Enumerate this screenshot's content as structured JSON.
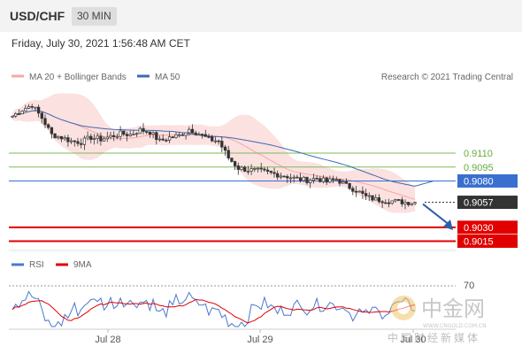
{
  "header": {
    "symbol": "USD/CHF",
    "timeframe": "30 MIN"
  },
  "datetime": "Friday, July 30, 2021 1:56:48 AM CET",
  "legend": {
    "bollinger": "MA 20 + Bollinger Bands",
    "ma50": "MA 50",
    "credit": "Research © 2021 Trading Central"
  },
  "rsi_legend": {
    "rsi": "RSI",
    "ma": "9MA"
  },
  "watermark": {
    "title": "中金网",
    "url": "WWW.CNGOLD.COM.CN",
    "subtitle": "中国财经新媒体"
  },
  "colors": {
    "bollinger": "#f4a8a5",
    "ma50": "#4169b0",
    "support": "#e00000",
    "pivot": "#3a6fd0",
    "resistance": "#7dbb58",
    "last": "#333333",
    "candle_up": "#ffffff",
    "candle_down": "#333333"
  },
  "chart_data": {
    "type": "candlestick",
    "x_labels": [
      "Jul 28",
      "Jul 29",
      "Jul 30"
    ],
    "price_range": [
      0.9005,
      0.9175
    ],
    "levels": [
      {
        "value": 0.911,
        "label": "0.9110",
        "kind": "resistance"
      },
      {
        "value": 0.9095,
        "label": "0.9095",
        "kind": "resistance"
      },
      {
        "value": 0.908,
        "label": "0.9080",
        "kind": "pivot"
      },
      {
        "value": 0.9057,
        "label": "0.9057",
        "kind": "last"
      },
      {
        "value": 0.903,
        "label": "0.9030",
        "kind": "support"
      },
      {
        "value": 0.9015,
        "label": "0.9015",
        "kind": "support"
      }
    ],
    "rsi": {
      "range": [
        20,
        80
      ],
      "level_label": "70",
      "level": 70
    },
    "close_path": [
      [
        0,
        0.915
      ],
      [
        3,
        0.9157
      ],
      [
        6,
        0.9162
      ],
      [
        9,
        0.9148
      ],
      [
        12,
        0.913
      ],
      [
        15,
        0.9127
      ],
      [
        18,
        0.9123
      ],
      [
        21,
        0.9122
      ],
      [
        24,
        0.9127
      ],
      [
        27,
        0.9125
      ],
      [
        30,
        0.9128
      ],
      [
        33,
        0.9131
      ],
      [
        36,
        0.913
      ],
      [
        39,
        0.9135
      ],
      [
        42,
        0.9133
      ],
      [
        45,
        0.9123
      ],
      [
        48,
        0.9127
      ],
      [
        51,
        0.9129
      ],
      [
        54,
        0.9136
      ],
      [
        57,
        0.9131
      ],
      [
        60,
        0.9125
      ],
      [
        63,
        0.9123
      ],
      [
        66,
        0.9105
      ],
      [
        69,
        0.9094
      ],
      [
        72,
        0.9092
      ],
      [
        75,
        0.9091
      ],
      [
        78,
        0.9089
      ],
      [
        81,
        0.9087
      ],
      [
        84,
        0.9085
      ],
      [
        87,
        0.9082
      ],
      [
        90,
        0.9081
      ],
      [
        93,
        0.9083
      ],
      [
        96,
        0.9079
      ],
      [
        99,
        0.9082
      ],
      [
        102,
        0.9075
      ],
      [
        105,
        0.907
      ],
      [
        108,
        0.9063
      ],
      [
        111,
        0.906
      ],
      [
        114,
        0.9059
      ],
      [
        117,
        0.9058
      ],
      [
        120,
        0.9057
      ],
      [
        123,
        0.9057
      ]
    ],
    "forecast": {
      "from": 0.9057,
      "to": 0.9025
    }
  }
}
